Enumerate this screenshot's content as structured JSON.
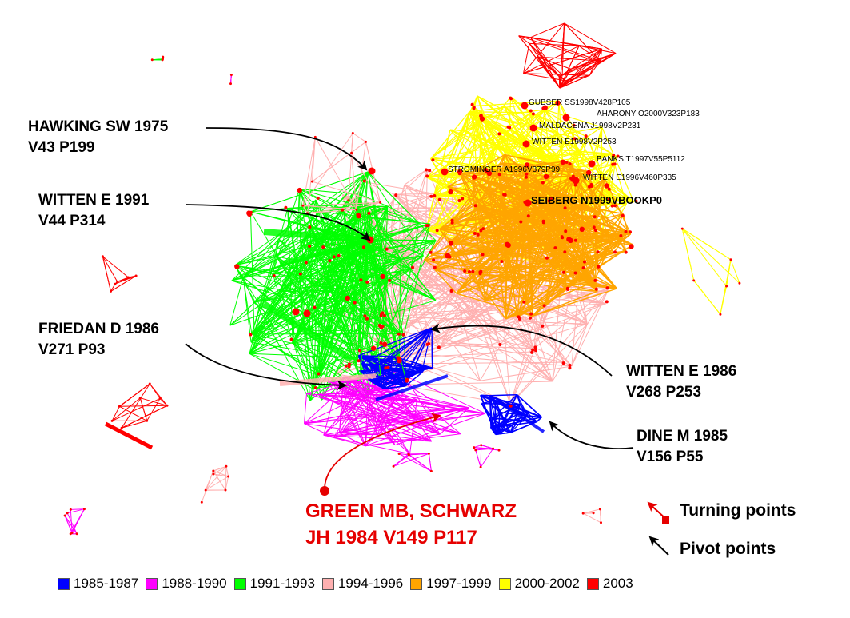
{
  "annotations": {
    "hawking": [
      "HAWKING SW 1975",
      "V43 P199"
    ],
    "witten91": [
      "WITTEN E 1991",
      "V44 P314"
    ],
    "friedan": [
      "FRIEDAN D 1986",
      "V271 P93"
    ],
    "witten86": [
      "WITTEN E 1986",
      "V268 P253"
    ],
    "dine": [
      "DINE M 1985",
      "V156 P55"
    ],
    "green": [
      "GREEN MB, SCHWARZ",
      "JH 1984 V149 P117"
    ]
  },
  "node_labels": {
    "gubser": "GUBSER SS1998V428P105",
    "aharony": "AHARONY O2000V323P183",
    "maldacena": "MALDACENA J1998V2P231",
    "witten98": "WITTEN E1998V2P253",
    "banks": "BANKS T1997V55P5112",
    "strominger": "STROMINGER A1996V379P99",
    "witten96": "WITTEN E1996V460P335",
    "seiberg": "SEIBERG N1999VBOOKP0"
  },
  "key": {
    "turning": "Turning points",
    "pivot": "Pivot points"
  },
  "legend": [
    {
      "label": "1985-1987",
      "color": "#0000ff"
    },
    {
      "label": "1988-1990",
      "color": "#ff00ff"
    },
    {
      "label": "1991-1993",
      "color": "#00ff00"
    },
    {
      "label": "1994-1996",
      "color": "#ffb0b0"
    },
    {
      "label": "1997-1999",
      "color": "#ffa500"
    },
    {
      "label": "2000-2002",
      "color": "#ffff00"
    },
    {
      "label": "2003",
      "color": "#ff0000"
    }
  ],
  "colors": {
    "blue": "#0000ff",
    "magenta": "#ff00ff",
    "green": "#00ff00",
    "pink": "#ffb0b0",
    "orange": "#ffa500",
    "yellow": "#ffff00",
    "red": "#ff0000",
    "turning_red": "#e60000",
    "pivot_black": "#000000"
  }
}
